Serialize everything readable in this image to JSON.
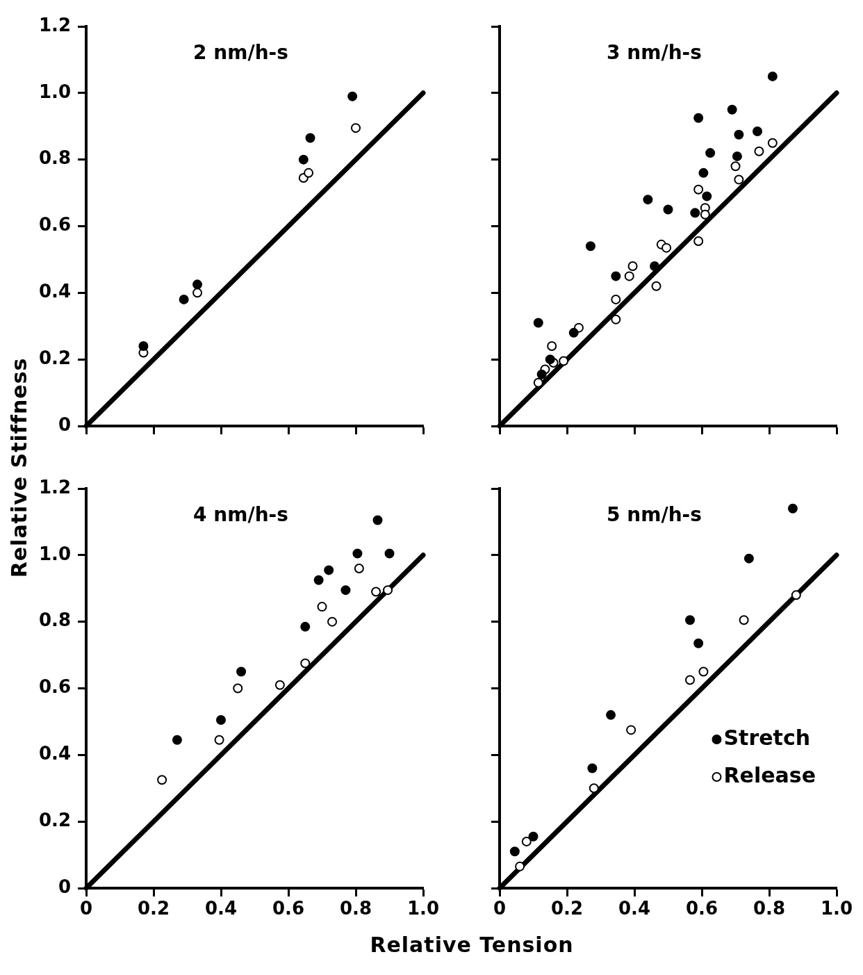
{
  "chart_data": [
    {
      "type": "scatter",
      "title": "2 nm/h-s",
      "ylabel": "Relative Stiffness",
      "xlim": [
        0,
        1
      ],
      "ylim": [
        0,
        1.2
      ],
      "xticks": [
        0,
        0.2,
        0.4,
        0.6,
        0.8,
        1
      ],
      "yticks": [
        0,
        0.2,
        0.4,
        0.6,
        0.8,
        {
          "value": 1,
          "label": "1.0"
        },
        1.2
      ],
      "tick_labels": "y",
      "grid": false,
      "legend": false,
      "series": [
        {
          "type": "scatter",
          "color": "#000000",
          "marker": "circle",
          "x": [
            0.17,
            0.29,
            0.33,
            0.645,
            0.665,
            0.79
          ],
          "values": [
            0.24,
            0.38,
            0.425,
            0.8,
            0.865,
            0.99
          ]
        },
        {
          "type": "scatter",
          "color": "#000000",
          "marker": "circle",
          "x": [
            0.17,
            0.33,
            0.645,
            0.66,
            0.8
          ],
          "values": [
            0.22,
            0.4,
            0.745,
            0.76,
            0.895
          ]
        },
        {
          "type": "line",
          "color": "#000000",
          "marker": "none",
          "line_style": "solid",
          "x": [
            0,
            1
          ],
          "values": [
            0,
            1
          ]
        }
      ]
    },
    {
      "type": "scatter",
      "title": "3 nm/h-s",
      "xlim": [
        0,
        1
      ],
      "ylim": [
        0,
        1.2
      ],
      "xticks": [
        0,
        0.2,
        0.4,
        0.6,
        0.8,
        1
      ],
      "yticks": [
        0,
        0.2,
        0.4,
        0.6,
        0.8,
        1,
        1.2
      ],
      "tick_labels": false,
      "grid": false,
      "legend": false,
      "series": [
        {
          "type": "scatter",
          "color": "#000000",
          "marker": "circle",
          "x": [
            0.115,
            0.125,
            0.15,
            0.22,
            0.27,
            0.345,
            0.44,
            0.46,
            0.5,
            0.58,
            0.59,
            0.605,
            0.615,
            0.625,
            0.69,
            0.71,
            0.705,
            0.765,
            0.81
          ],
          "values": [
            0.31,
            0.155,
            0.2,
            0.28,
            0.54,
            0.45,
            0.68,
            0.48,
            0.65,
            0.64,
            0.925,
            0.76,
            0.69,
            0.82,
            0.95,
            0.875,
            0.81,
            0.885,
            1.05
          ]
        },
        {
          "type": "scatter",
          "color": "#000000",
          "marker": "circle",
          "x": [
            0.115,
            0.135,
            0.155,
            0.16,
            0.19,
            0.235,
            0.345,
            0.345,
            0.385,
            0.395,
            0.465,
            0.48,
            0.495,
            0.59,
            0.59,
            0.61,
            0.61,
            0.7,
            0.71,
            0.77,
            0.81
          ],
          "values": [
            0.13,
            0.17,
            0.24,
            0.19,
            0.195,
            0.295,
            0.38,
            0.32,
            0.45,
            0.48,
            0.42,
            0.545,
            0.535,
            0.71,
            0.555,
            0.655,
            0.635,
            0.78,
            0.74,
            0.825,
            0.85
          ]
        },
        {
          "type": "line",
          "color": "#000000",
          "marker": "none",
          "line_style": "solid",
          "x": [
            0,
            1
          ],
          "values": [
            0,
            1
          ]
        }
      ]
    },
    {
      "type": "scatter",
      "title": "4 nm/h-s",
      "xlabel": "Relative Tension",
      "xlim": [
        0,
        1
      ],
      "ylim": [
        0,
        1.2
      ],
      "xticks": [
        0,
        0.2,
        0.4,
        0.6,
        0.8,
        {
          "value": 1,
          "label": "1.0"
        }
      ],
      "yticks": [
        0,
        0.2,
        0.4,
        0.6,
        0.8,
        {
          "value": 1,
          "label": "1.0"
        },
        1.2
      ],
      "grid": false,
      "legend": false,
      "series": [
        {
          "type": "scatter",
          "color": "#000000",
          "marker": "circle",
          "x": [
            0.27,
            0.4,
            0.46,
            0.65,
            0.69,
            0.72,
            0.77,
            0.805,
            0.865,
            0.9
          ],
          "values": [
            0.445,
            0.505,
            0.65,
            0.785,
            0.925,
            0.955,
            0.895,
            1.005,
            1.105,
            1.005
          ]
        },
        {
          "type": "scatter",
          "color": "#000000",
          "marker": "circle",
          "x": [
            0.225,
            0.395,
            0.45,
            0.575,
            0.65,
            0.7,
            0.73,
            0.81,
            0.86,
            0.895
          ],
          "values": [
            0.325,
            0.445,
            0.6,
            0.61,
            0.675,
            0.845,
            0.8,
            0.96,
            0.89,
            0.895
          ]
        },
        {
          "type": "line",
          "color": "#000000",
          "marker": "none",
          "line_style": "solid",
          "x": [
            0,
            1
          ],
          "values": [
            0,
            1
          ]
        }
      ]
    },
    {
      "type": "scatter",
      "title": "5 nm/h-s",
      "xlim": [
        0,
        1
      ],
      "ylim": [
        0,
        1.2
      ],
      "xticks": [
        0,
        0.2,
        0.4,
        0.6,
        0.8,
        {
          "value": 1,
          "label": "1.0"
        }
      ],
      "yticks": [
        0,
        0.2,
        0.4,
        0.6,
        0.8,
        1,
        1.2
      ],
      "tick_labels": "x",
      "grid": false,
      "legend": "bottom right",
      "series": [
        {
          "type": "scatter",
          "name": "Stretch",
          "color": "#000000",
          "marker": "circle",
          "x": [
            0.045,
            0.1,
            0.275,
            0.33,
            0.565,
            0.59,
            0.74,
            0.87
          ],
          "values": [
            0.11,
            0.155,
            0.36,
            0.52,
            0.805,
            0.735,
            0.99,
            1.14
          ]
        },
        {
          "type": "scatter",
          "name": "Release",
          "color": "#000000",
          "marker": "circle",
          "x": [
            0.06,
            0.08,
            0.28,
            0.39,
            0.565,
            0.605,
            0.725,
            0.88
          ],
          "values": [
            0.065,
            0.14,
            0.3,
            0.475,
            0.625,
            0.65,
            0.805,
            0.88
          ]
        },
        {
          "type": "line",
          "color": "#000000",
          "marker": "none",
          "line_style": "solid",
          "x": [
            0,
            1
          ],
          "values": [
            0,
            1
          ]
        }
      ]
    }
  ]
}
